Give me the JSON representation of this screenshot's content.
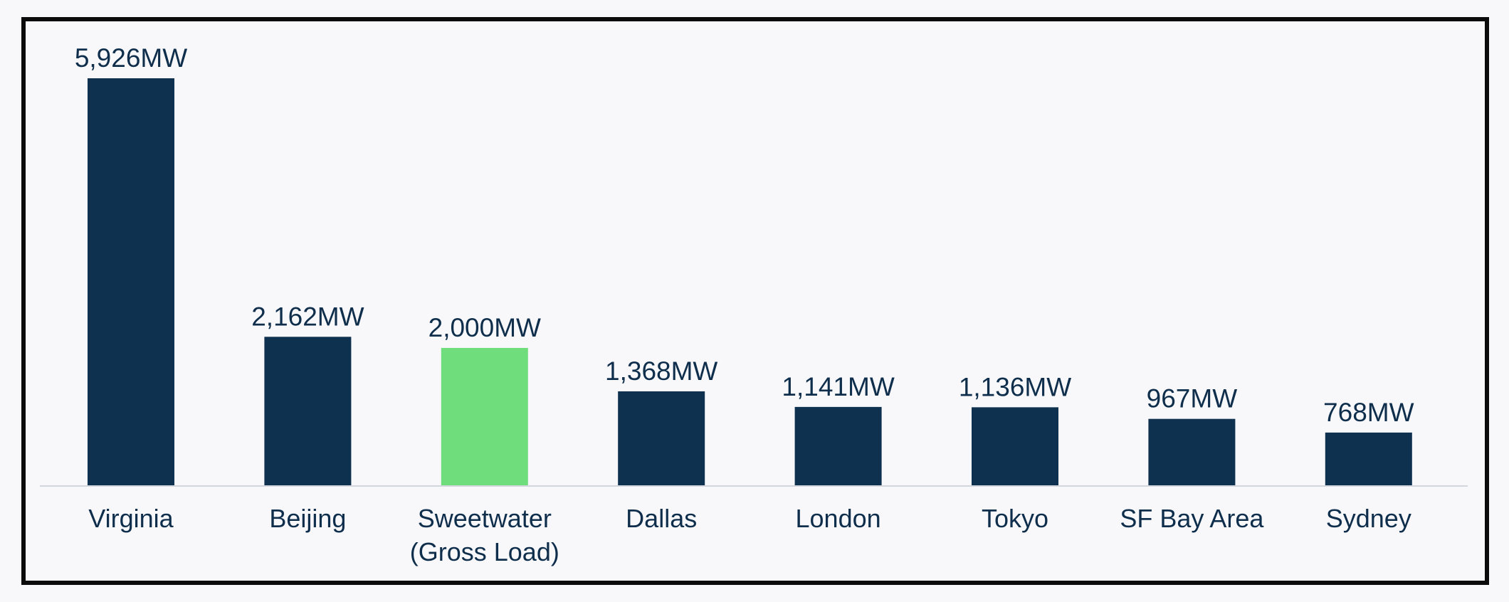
{
  "chart_data": {
    "type": "bar",
    "categories": [
      [
        "Virginia"
      ],
      [
        "Beijing"
      ],
      [
        "Sweetwater",
        "(Gross Load)"
      ],
      [
        "Dallas"
      ],
      [
        "London"
      ],
      [
        "Tokyo"
      ],
      [
        "SF Bay Area"
      ],
      [
        "Sydney"
      ]
    ],
    "values": [
      5926,
      2162,
      2000,
      1368,
      1141,
      1136,
      967,
      768
    ],
    "value_labels": [
      "5,926MW",
      "2,162MW",
      "2,000MW",
      "1,368MW",
      "1,141MW",
      "1,136MW",
      "967MW",
      "768MW"
    ],
    "ylim": [
      0,
      5926
    ],
    "grid": false,
    "colors": {
      "default": "#0e314f",
      "highlight": "#6fdd7c",
      "highlight_category_index": 2,
      "baseline": "#d3d6dc",
      "text": "#0e2e4c"
    }
  }
}
